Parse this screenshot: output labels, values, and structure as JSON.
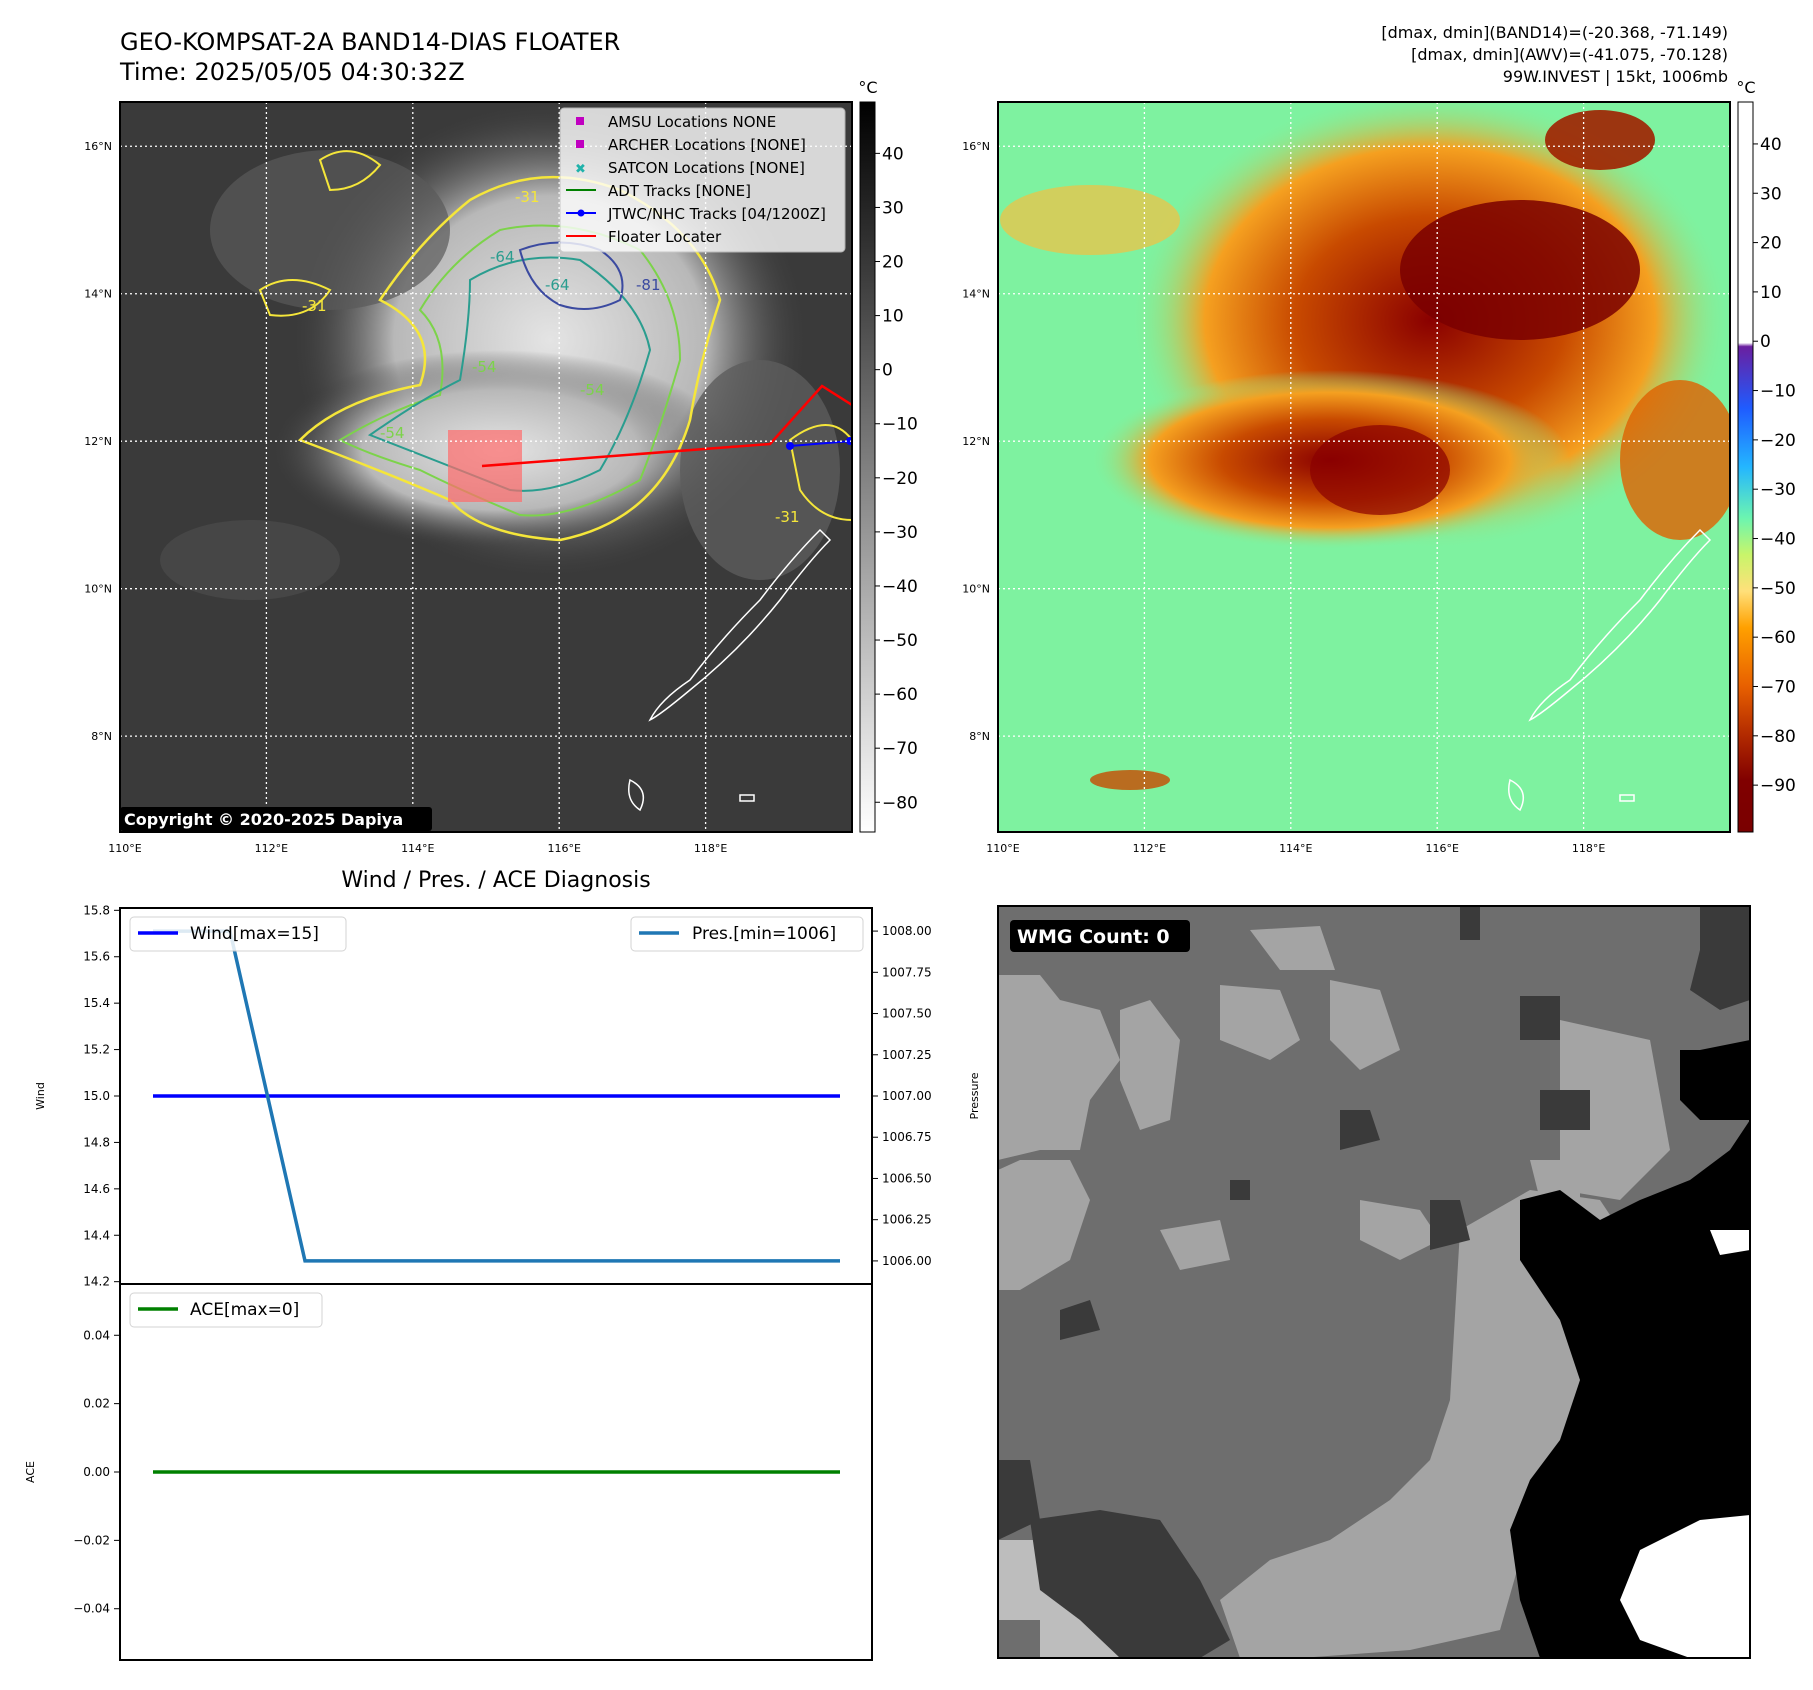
{
  "header": {
    "title_line1": "GEO-KOMPSAT-2A BAND14-DIAS FLOATER",
    "title_line2": "Time: 2025/05/05 04:30:32Z",
    "info_line1": "[dmax, dmin](BAND14)=(-20.368, -71.149)",
    "info_line2": "[dmax, dmin](AWV)=(-41.075, -70.128)",
    "info_line3": "99W.INVEST | 15kt, 1006mb"
  },
  "maps": {
    "lat_labels": [
      "16°N",
      "14°N",
      "12°N",
      "10°N",
      "8°N"
    ],
    "lon_labels": [
      "110°E",
      "112°E",
      "114°E",
      "116°E",
      "118°E"
    ],
    "copyright": "Copyright © 2020-2025 Dapiya",
    "contour_labels": [
      "-31",
      "-54",
      "-64",
      "-81",
      "-64",
      "-54",
      "-54",
      "-31",
      "-31"
    ]
  },
  "colorbar_left": {
    "unit": "°C",
    "ticks": [
      "40",
      "30",
      "20",
      "10",
      "0",
      "−10",
      "−20",
      "−30",
      "−40",
      "−50",
      "−60",
      "−70",
      "−80"
    ]
  },
  "colorbar_right": {
    "unit": "°C",
    "ticks": [
      "40",
      "30",
      "20",
      "10",
      "0",
      "−10",
      "−20",
      "−30",
      "−40",
      "−50",
      "−60",
      "−70",
      "−80",
      "−90"
    ]
  },
  "legend": {
    "items": [
      {
        "label": "AMSU Locations NONE",
        "color": "#c000c0",
        "marker": "square"
      },
      {
        "label": "ARCHER Locations [NONE]",
        "color": "#c000c0",
        "marker": "square"
      },
      {
        "label": "SATCON Locations [NONE]",
        "color": "#20b2aa",
        "marker": "x"
      },
      {
        "label": "ADT Tracks [NONE]",
        "color": "#008000",
        "marker": "line"
      },
      {
        "label": "JTWC/NHC Tracks [04/1200Z]",
        "color": "#0000ff",
        "marker": "line-dot"
      },
      {
        "label": "Floater Locater",
        "color": "#ff0000",
        "marker": "line"
      }
    ]
  },
  "diagnosis": {
    "title": "Wind / Pres. / ACE Diagnosis",
    "wind_ylabel": "Wind",
    "pres_ylabel": "Pressure",
    "ace_ylabel": "ACE",
    "wind_legend": "Wind[max=15]",
    "pres_legend": "Pres.[min=1006]",
    "ace_legend": "ACE[max=0]"
  },
  "wmg": {
    "label": "WMG Count: 0"
  },
  "colors": {
    "wind": "#0000ff",
    "pressure": "#1f77b4",
    "ace": "#008000",
    "track_red": "#ff0000",
    "track_blue": "#0000ff"
  },
  "chart_data": [
    {
      "type": "line",
      "title": "Wind / Pres. / ACE Diagnosis",
      "ylabel": "Wind",
      "ylim": [
        14.2,
        15.8
      ],
      "yticks": [
        "15.8",
        "15.6",
        "15.4",
        "15.2",
        "15.0",
        "14.8",
        "14.6",
        "14.4",
        "14.2"
      ],
      "series": [
        {
          "name": "Wind[max=15]",
          "values": [
            15,
            15
          ]
        }
      ]
    },
    {
      "type": "line",
      "ylabel": "Pressure",
      "ylim": [
        1005.95,
        1008.05
      ],
      "yticks": [
        "1008.00",
        "1007.75",
        "1007.50",
        "1007.25",
        "1007.00",
        "1006.75",
        "1006.50",
        "1006.25",
        "1006.00"
      ],
      "series": [
        {
          "name": "Pres.[min=1006]",
          "values": [
            1008,
            1008,
            1006,
            1006
          ]
        }
      ]
    },
    {
      "type": "line",
      "ylabel": "ACE",
      "ylim": [
        -0.055,
        0.055
      ],
      "yticks": [
        "0.04",
        "0.02",
        "0.00",
        "−0.02",
        "−0.04"
      ],
      "series": [
        {
          "name": "ACE[max=0]",
          "values": [
            0,
            0
          ]
        }
      ]
    }
  ]
}
